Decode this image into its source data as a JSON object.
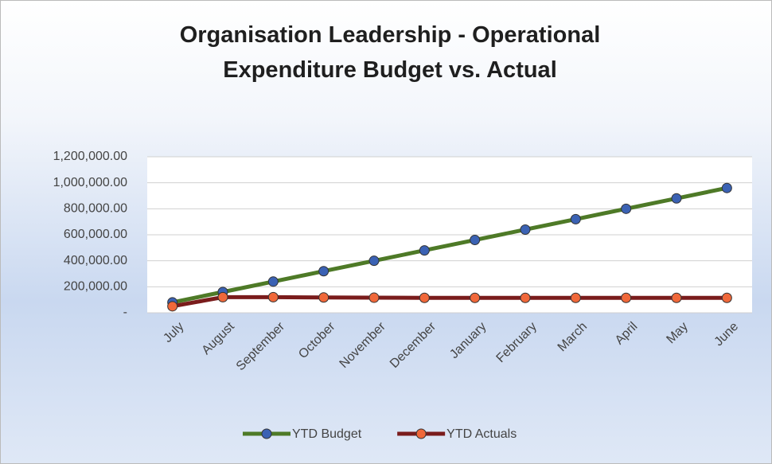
{
  "chart_data": {
    "type": "line",
    "title": "Organisation Leadership - Operational Expenditure Budget vs. Actual",
    "categories": [
      "July",
      "August",
      "September",
      "October",
      "November",
      "December",
      "January",
      "February",
      "March",
      "April",
      "May",
      "June"
    ],
    "series": [
      {
        "name": "YTD Budget",
        "color": "#4e7a27",
        "marker_color": "#3b62b4",
        "values": [
          80000,
          160000,
          240000,
          320000,
          400000,
          480000,
          560000,
          640000,
          720000,
          800000,
          880000,
          960000
        ]
      },
      {
        "name": "YTD Actuals",
        "color": "#7a1c1c",
        "marker_color": "#f0683a",
        "values": [
          50000,
          120000,
          120000,
          118000,
          116000,
          115000,
          115000,
          115000,
          115000,
          115000,
          115000,
          115000
        ]
      }
    ],
    "ylim": [
      0,
      1200000
    ],
    "yticks": [
      {
        "value": 0,
        "label": "-"
      },
      {
        "value": 200000,
        "label": "200,000.00"
      },
      {
        "value": 400000,
        "label": "400,000.00"
      },
      {
        "value": 600000,
        "label": "600,000.00"
      },
      {
        "value": 800000,
        "label": "800,000.00"
      },
      {
        "value": 1000000,
        "label": "1,000,000.00"
      },
      {
        "value": 1200000,
        "label": "1,200,000.00"
      }
    ],
    "grid": true,
    "legend": "bottom"
  }
}
